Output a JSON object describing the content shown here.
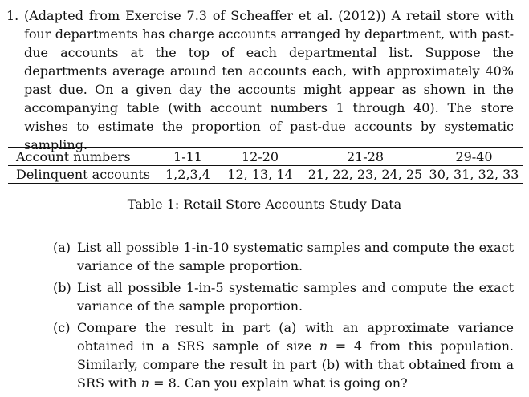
{
  "problem": {
    "number": "1.",
    "text": "(Adapted from Exercise 7.3 of Scheaffer et al. (2012)) A retail store with four departments has charge accounts arranged by department, with past-due accounts at the top of each departmental list. Suppose the departments average around ten accounts each, with approximately 40% past due. On a given day the accounts might appear as shown in the accompanying table (with account numbers 1 through 40). The store wishes to estimate the proportion of past-due accounts by systematic sampling."
  },
  "table": {
    "rows": [
      {
        "label": "Account numbers",
        "cells": [
          "1-11",
          "12-20",
          "21-28",
          "29-40"
        ]
      },
      {
        "label": "Delinquent accounts",
        "cells": [
          "1,2,3,4",
          "12, 13, 14",
          "21, 22, 23, 24, 25",
          "30, 31, 32, 33"
        ]
      }
    ],
    "caption": "Table 1: Retail Store Accounts Study Data"
  },
  "parts": [
    {
      "label": "(a)",
      "text": "List all possible 1-in-10 systematic samples and compute the exact variance of the sample proportion."
    },
    {
      "label": "(b)",
      "text": "List all possible 1-in-5 systematic samples and compute the exact variance of the sample proportion."
    },
    {
      "label": "(c)",
      "text_1": "Compare the result in part (a) with an approximate variance obtained in a SRS sample of size ",
      "n1": "n",
      "eq1": " = 4 from this population. Similarly, compare the result in part (b) with that obtained from a SRS with ",
      "n2": "n",
      "eq2": " = 8. Can you explain what is going on?"
    }
  ]
}
